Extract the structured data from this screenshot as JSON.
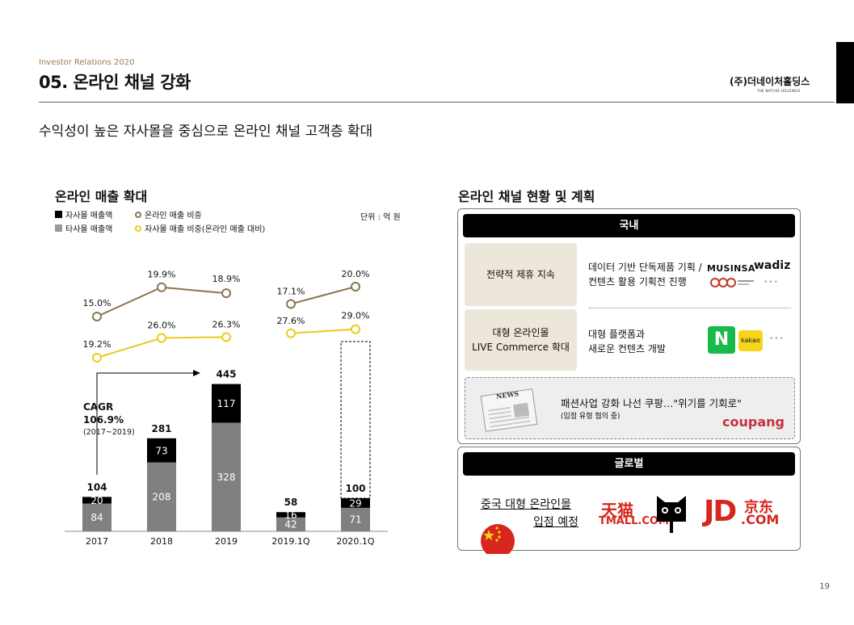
{
  "header": {
    "sub": "Investor Relations 2020",
    "title": "05. 온라인 채널 강화",
    "company": "(주)더네이처홀딩스",
    "company_sub": "THE NATURE HOLDINGS"
  },
  "subtitle": "수익성이 높은 자사몰을 중심으로 온라인 채널 고객층 확대",
  "left": {
    "title": "온라인 매출 확대",
    "legend": {
      "own_sales": "자사몰 매출액",
      "other_sales": "타사몰 매출액",
      "online_ratio": "온라인 매출 비중",
      "own_ratio": "자사몰 매출 비중(온라인 매출 대비)"
    },
    "unit": "단위 : 억 원",
    "cagr": {
      "label": "CAGR",
      "value": "106.9%",
      "period": "(2017~2019)"
    }
  },
  "chart_data": {
    "type": "bar",
    "categories": [
      "2017",
      "2018",
      "2019",
      "2019.1Q",
      "2020.1Q"
    ],
    "series": [
      {
        "name": "자사몰 매출액",
        "values": [
          20,
          73,
          117,
          16,
          29
        ],
        "color": "#000000"
      },
      {
        "name": "타사몰 매출액",
        "values": [
          84,
          208,
          328,
          42,
          71
        ],
        "color": "#808080"
      }
    ],
    "totals": [
      "104",
      "281",
      "445",
      "58",
      "100"
    ],
    "line_series": [
      {
        "name": "온라인 매출 비중",
        "labels": [
          "15.0%",
          "19.9%",
          "18.9%",
          "17.1%",
          "20.0%"
        ],
        "values": [
          15.0,
          19.9,
          18.9,
          17.1,
          20.0
        ],
        "color": "#8b7551"
      },
      {
        "name": "자사몰 매출 비중(온라인 매출 대비)",
        "labels": [
          "19.2%",
          "26.0%",
          "26.3%",
          "27.6%",
          "29.0%"
        ],
        "values": [
          19.2,
          26.0,
          26.3,
          27.6,
          29.0
        ],
        "color": "#e8cc1a"
      }
    ]
  },
  "right": {
    "title": "온라인 채널 현황 및 계획",
    "domestic": {
      "header": "국내",
      "row1_label": "전략적 제휴 지속",
      "row1_desc1": "데이터 기반 단독제품 기획 /",
      "row1_desc2": "컨텐츠 활용 기획전 진행",
      "row2_label1": "대형 온라인몰",
      "row2_label2": "LIVE Commerce 확대",
      "row2_desc1": "대형 플랫폼과",
      "row2_desc2": "새로운 컨텐츠 개발",
      "logo_musinsa": "MUSINSA",
      "logo_wadiz": "wadiz",
      "logo_n": "N",
      "logo_kakao": "kakao",
      "dots": "•••",
      "news_badge": "NEWS",
      "news_headline": "패션사업 강화 나선 쿠팡…\"위기를 기회로\"",
      "news_sub": "(입점 유형 협의 중)",
      "logo_coupang": "coupang"
    },
    "global": {
      "header": "글로벌",
      "text1": "중국 대형 온라인몰",
      "text2": "입점 예정",
      "logo_tmall_cn": "天猫",
      "logo_tmall_en": "TMALL.COM",
      "logo_jd": "JD",
      "logo_jd_cn": "京东",
      "logo_jd_en": ".COM"
    }
  },
  "page_number": "19"
}
